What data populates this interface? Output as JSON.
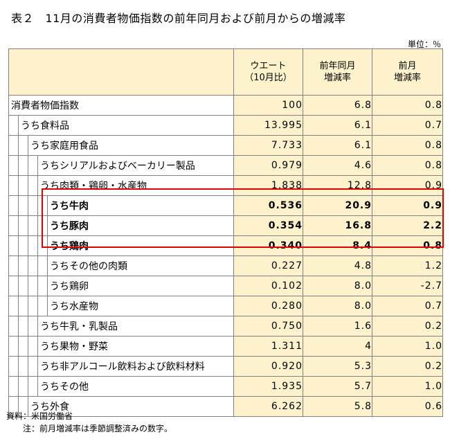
{
  "title": "表２　11月の消費者物価指数の前年同月および前月からの増減率",
  "unit": "単位：％",
  "headers": [
    [
      "ウエート",
      "（10月比）"
    ],
    [
      "前年同月",
      "増減率"
    ],
    [
      "前月",
      "増減率"
    ]
  ],
  "rows": [
    {
      "label": "消費者物価指数",
      "indent": 0,
      "bold": false,
      "w": "100",
      "yoy": "6.8",
      "mom": "0.8"
    },
    {
      "label": "うち食料品",
      "indent": 1,
      "bold": false,
      "w": "13.995",
      "yoy": "6.1",
      "mom": "0.7"
    },
    {
      "label": "うち家庭用食品",
      "indent": 2,
      "bold": false,
      "w": "7.733",
      "yoy": "6.1",
      "mom": "0.8"
    },
    {
      "label": "うちシリアルおよびベーカリー製品",
      "indent": 3,
      "bold": false,
      "w": "0.979",
      "yoy": "4.6",
      "mom": "0.8"
    },
    {
      "label": "うち肉類・鶏卵・水産物",
      "indent": 3,
      "bold": false,
      "w": "1.838",
      "yoy": "12.8",
      "mom": "0.9"
    },
    {
      "label": "うち牛肉",
      "indent": 4,
      "bold": true,
      "w": "0.536",
      "yoy": "20.9",
      "mom": "0.9"
    },
    {
      "label": "うち豚肉",
      "indent": 4,
      "bold": true,
      "w": "0.354",
      "yoy": "16.8",
      "mom": "2.2"
    },
    {
      "label": "うち鶏肉",
      "indent": 4,
      "bold": true,
      "w": "0.340",
      "yoy": "8.4",
      "mom": "0.8"
    },
    {
      "label": "うちその他の肉類",
      "indent": 4,
      "bold": false,
      "w": "0.227",
      "yoy": "4.8",
      "mom": "1.2"
    },
    {
      "label": "うち鶏卵",
      "indent": 4,
      "bold": false,
      "w": "0.102",
      "yoy": "8.0",
      "mom": "-2.7"
    },
    {
      "label": "うち水産物",
      "indent": 4,
      "bold": false,
      "w": "0.280",
      "yoy": "8.0",
      "mom": "0.7"
    },
    {
      "label": "うち牛乳・乳製品",
      "indent": 3,
      "bold": false,
      "w": "0.750",
      "yoy": "1.6",
      "mom": "0.2"
    },
    {
      "label": "うち果物・野菜",
      "indent": 3,
      "bold": false,
      "w": "1.311",
      "yoy": "4",
      "mom": "1.0"
    },
    {
      "label": "うち非アルコール飲料および飲料材料",
      "indent": 3,
      "bold": false,
      "w": "0.920",
      "yoy": "5.3",
      "mom": "0.2"
    },
    {
      "label": "うちその他",
      "indent": 3,
      "bold": false,
      "w": "1.935",
      "yoy": "5.7",
      "mom": "1.0"
    },
    {
      "label": "うち外食",
      "indent": 2,
      "bold": false,
      "w": "6.262",
      "yoy": "5.8",
      "mom": "0.6"
    }
  ],
  "notes": {
    "source": "資料：米国労働省",
    "note": "注：前月増減率は季節調整済みの数字。"
  },
  "colors": {
    "cell_fill": "#fdf2cc",
    "highlight_border": "#e00000",
    "grid": "#808080"
  }
}
